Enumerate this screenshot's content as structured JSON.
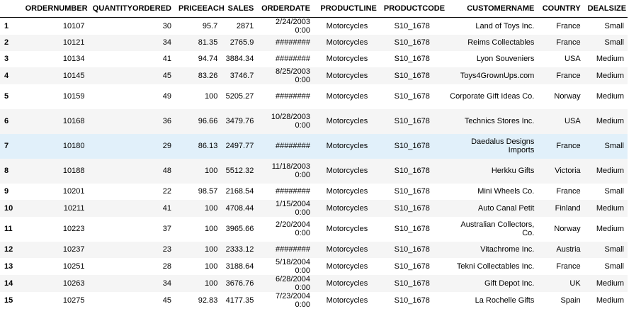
{
  "table": {
    "columns": [
      "",
      "ORDERNUMBER",
      "QUANTITYORDERED",
      "PRICEEACH",
      "SALES",
      "ORDERDATE",
      "PRODUCTLINE",
      "PRODUCTCODE",
      "CUSTOMERNAME",
      "COUNTRY",
      "DEALSIZE"
    ],
    "rows": [
      {
        "index": "1",
        "ordernumber": "10107",
        "quantity": "30",
        "priceeach": "95.7",
        "sales": "2871",
        "orderdate": "2/24/2003 0:00",
        "productline": "Motorcycles",
        "productcode": "S10_1678",
        "customername": "Land of Toys Inc.",
        "country": "France",
        "dealsize": "Small"
      },
      {
        "index": "2",
        "ordernumber": "10121",
        "quantity": "34",
        "priceeach": "81.35",
        "sales": "2765.9",
        "orderdate": "########",
        "productline": "Motorcycles",
        "productcode": "S10_1678",
        "customername": "Reims Collectables",
        "country": "France",
        "dealsize": "Small"
      },
      {
        "index": "3",
        "ordernumber": "10134",
        "quantity": "41",
        "priceeach": "94.74",
        "sales": "3884.34",
        "orderdate": "########",
        "productline": "Motorcycles",
        "productcode": "S10_1678",
        "customername": "Lyon Souveniers",
        "country": "USA",
        "dealsize": "Medium"
      },
      {
        "index": "4",
        "ordernumber": "10145",
        "quantity": "45",
        "priceeach": "83.26",
        "sales": "3746.7",
        "orderdate": "8/25/2003 0:00",
        "productline": "Motorcycles",
        "productcode": "S10_1678",
        "customername": "Toys4GrownUps.com",
        "country": "France",
        "dealsize": "Medium"
      },
      {
        "index": "5",
        "ordernumber": "10159",
        "quantity": "49",
        "priceeach": "100",
        "sales": "5205.27",
        "orderdate": "########",
        "productline": "Motorcycles",
        "productcode": "S10_1678",
        "customername": "Corporate Gift Ideas Co.",
        "country": "Norway",
        "dealsize": "Medium"
      },
      {
        "index": "6",
        "ordernumber": "10168",
        "quantity": "36",
        "priceeach": "96.66",
        "sales": "3479.76",
        "orderdate": "10/28/2003 0:00",
        "productline": "Motorcycles",
        "productcode": "S10_1678",
        "customername": "Technics Stores Inc.",
        "country": "USA",
        "dealsize": "Medium"
      },
      {
        "index": "7",
        "ordernumber": "10180",
        "quantity": "29",
        "priceeach": "86.13",
        "sales": "2497.77",
        "orderdate": "########",
        "productline": "Motorcycles",
        "productcode": "S10_1678",
        "customername": "Daedalus Designs Imports",
        "country": "France",
        "dealsize": "Small"
      },
      {
        "index": "8",
        "ordernumber": "10188",
        "quantity": "48",
        "priceeach": "100",
        "sales": "5512.32",
        "orderdate": "11/18/2003 0:00",
        "productline": "Motorcycles",
        "productcode": "S10_1678",
        "customername": "Herkku Gifts",
        "country": "Victoria",
        "dealsize": "Medium"
      },
      {
        "index": "9",
        "ordernumber": "10201",
        "quantity": "22",
        "priceeach": "98.57",
        "sales": "2168.54",
        "orderdate": "########",
        "productline": "Motorcycles",
        "productcode": "S10_1678",
        "customername": "Mini Wheels Co.",
        "country": "France",
        "dealsize": "Small"
      },
      {
        "index": "10",
        "ordernumber": "10211",
        "quantity": "41",
        "priceeach": "100",
        "sales": "4708.44",
        "orderdate": "1/15/2004 0:00",
        "productline": "Motorcycles",
        "productcode": "S10_1678",
        "customername": "Auto Canal Petit",
        "country": "Finland",
        "dealsize": "Medium"
      },
      {
        "index": "11",
        "ordernumber": "10223",
        "quantity": "37",
        "priceeach": "100",
        "sales": "3965.66",
        "orderdate": "2/20/2004 0:00",
        "productline": "Motorcycles",
        "productcode": "S10_1678",
        "customername": "Australian Collectors, Co.",
        "country": "Norway",
        "dealsize": "Medium"
      },
      {
        "index": "12",
        "ordernumber": "10237",
        "quantity": "23",
        "priceeach": "100",
        "sales": "2333.12",
        "orderdate": "########",
        "productline": "Motorcycles",
        "productcode": "S10_1678",
        "customername": "Vitachrome Inc.",
        "country": "Austria",
        "dealsize": "Small"
      },
      {
        "index": "13",
        "ordernumber": "10251",
        "quantity": "28",
        "priceeach": "100",
        "sales": "3188.64",
        "orderdate": "5/18/2004 0:00",
        "productline": "Motorcycles",
        "productcode": "S10_1678",
        "customername": "Tekni Collectables Inc.",
        "country": "France",
        "dealsize": "Small"
      },
      {
        "index": "14",
        "ordernumber": "10263",
        "quantity": "34",
        "priceeach": "100",
        "sales": "3676.76",
        "orderdate": "6/28/2004 0:00",
        "productline": "Motorcycles",
        "productcode": "S10_1678",
        "customername": "Gift Depot Inc.",
        "country": "UK",
        "dealsize": "Medium"
      },
      {
        "index": "15",
        "ordernumber": "10275",
        "quantity": "45",
        "priceeach": "92.83",
        "sales": "4177.35",
        "orderdate": "7/23/2004 0:00",
        "productline": "Motorcycles",
        "productcode": "S10_1678",
        "customername": "La Rochelle Gifts",
        "country": "Spain",
        "dealsize": "Medium"
      }
    ]
  },
  "colors": {
    "row_stripe": "#f5f5f5",
    "row_hover": "#e1f0fa",
    "header_border": "#000000"
  }
}
